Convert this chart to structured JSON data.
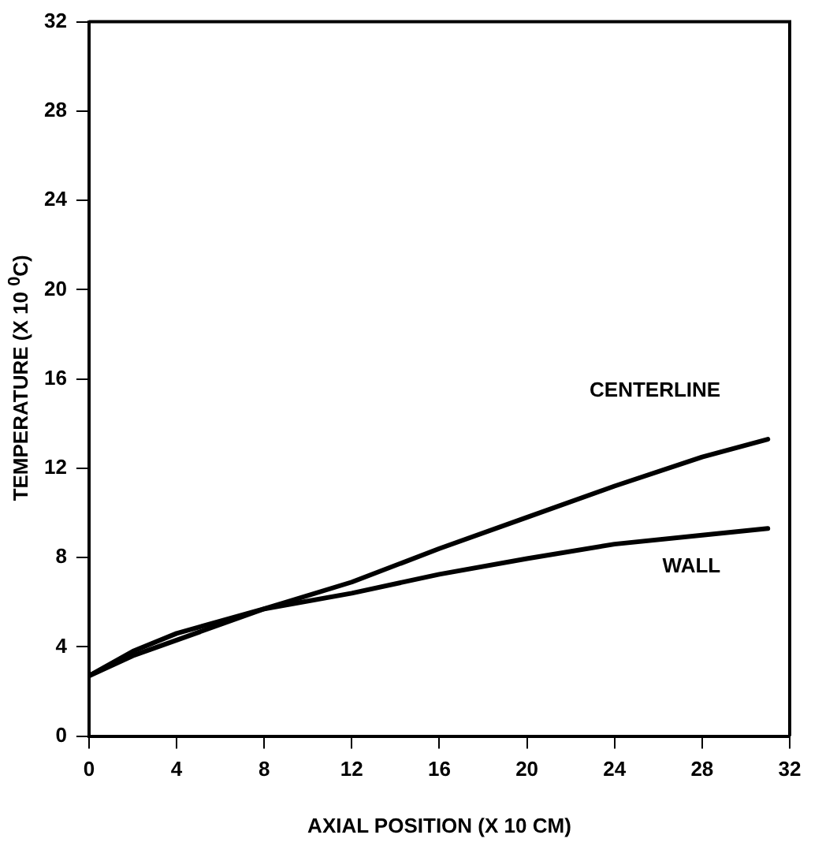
{
  "chart_data": {
    "type": "line",
    "xlabel": "AXIAL POSITION (X 10 CM)",
    "ylabel": "TEMPERATURE (X 10 $^{0}$C)",
    "x": [
      0,
      2,
      4,
      8,
      12,
      16,
      20,
      24,
      28,
      31
    ],
    "series": [
      {
        "name": "CENTERLINE",
        "color": "#000000",
        "values": [
          2.7,
          3.6,
          4.3,
          5.7,
          6.9,
          8.4,
          9.8,
          11.2,
          12.5,
          13.3
        ]
      },
      {
        "name": "WALL",
        "color": "#000000",
        "values": [
          2.7,
          3.8,
          4.6,
          5.7,
          6.4,
          7.25,
          7.95,
          8.6,
          9.0,
          9.3
        ]
      }
    ],
    "xlim": [
      0,
      32
    ],
    "xticks": [
      0,
      4,
      8,
      12,
      16,
      20,
      24,
      28,
      32
    ],
    "ylim": [
      0,
      32
    ],
    "yticks": [
      0,
      4,
      8,
      12,
      16,
      20,
      24,
      28,
      32
    ],
    "grid": false,
    "legend": false,
    "marker": "none",
    "line_style": "solid"
  }
}
